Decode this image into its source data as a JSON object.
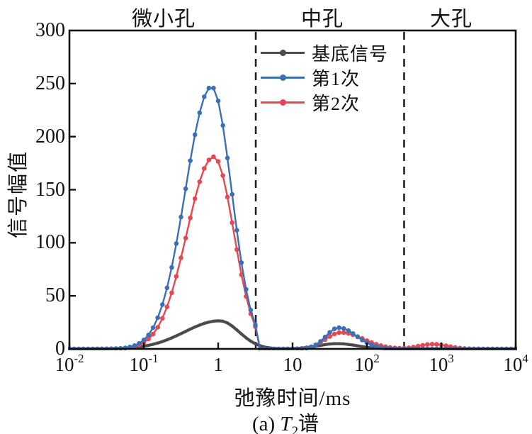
{
  "caption": {
    "prefix": "(a) ",
    "symbol": "T",
    "sub": "2",
    "suffix": "谱"
  },
  "chart_data": {
    "type": "line",
    "title": "",
    "xlabel": "弛豫时间/ms",
    "ylabel": "信号幅值",
    "x_scale": "log10",
    "x_log_range": [
      -2,
      4
    ],
    "ylim": [
      0,
      300
    ],
    "grid": false,
    "legend_position": "inside-top-center",
    "samples_per_decade": 16,
    "x_ticks": [
      {
        "log": -2,
        "base": "10",
        "exp": "-2"
      },
      {
        "log": -1,
        "base": "10",
        "exp": "-1"
      },
      {
        "log": 0,
        "base": "1",
        "exp": ""
      },
      {
        "log": 1,
        "base": "10",
        "exp": ""
      },
      {
        "log": 2,
        "base": "10",
        "exp": "2"
      },
      {
        "log": 3,
        "base": "10",
        "exp": "3"
      },
      {
        "log": 4,
        "base": "10",
        "exp": "4"
      }
    ],
    "y_ticks": [
      {
        "value": 0,
        "label": "0"
      },
      {
        "value": 50,
        "label": "50"
      },
      {
        "value": 100,
        "label": "100"
      },
      {
        "value": 150,
        "label": "150"
      },
      {
        "value": 200,
        "label": "200"
      },
      {
        "value": 250,
        "label": "250"
      },
      {
        "value": 300,
        "label": "300"
      }
    ],
    "regions": [
      {
        "label": "微小孔",
        "range_ms": [
          0.01,
          3.2
        ]
      },
      {
        "label": "中孔",
        "range_ms": [
          3.2,
          316
        ]
      },
      {
        "label": "大孔",
        "range_ms": [
          316,
          10000
        ]
      }
    ],
    "boundaries": {
      "values_ms": [
        3.2,
        316
      ],
      "color": "#222222",
      "dash": "11 8",
      "width": 2.6
    },
    "axis_color": "#111111",
    "series": [
      {
        "id": "base",
        "label": "基底信号",
        "color": "#4b4b4b",
        "line_width": 4.2,
        "marker_radius": 2.2,
        "peaks": [
          {
            "amp": 26.5,
            "center_log10": 0.02,
            "sigma_left": 0.47,
            "sigma_right": 0.26
          },
          {
            "amp": 5.0,
            "center_log10": 1.6,
            "sigma_left": 0.25,
            "sigma_right": 0.26
          }
        ],
        "peak_summary": [
          {
            "t2_ms": 1.05,
            "amplitude": 26.5
          },
          {
            "t2_ms": 40,
            "amplitude": 5
          }
        ]
      },
      {
        "id": "run2",
        "label": "第2次",
        "color": "#e84750",
        "line_width": 2.4,
        "marker_radius": 3.3,
        "peaks": [
          {
            "amp": 181,
            "center_log10": -0.06,
            "sigma_left": 0.36,
            "sigma_right": 0.27,
            "cutoff_ms": 3.6
          },
          {
            "amp": 15.5,
            "center_log10": 1.65,
            "sigma_left": 0.2,
            "sigma_right": 0.3
          },
          {
            "amp": 4.5,
            "center_log10": 2.88,
            "sigma_left": 0.18,
            "sigma_right": 0.2
          }
        ],
        "peak_summary": [
          {
            "t2_ms": 0.87,
            "amplitude": 181
          },
          {
            "t2_ms": 45,
            "amplitude": 15.5
          },
          {
            "t2_ms": 760,
            "amplitude": 4.5
          }
        ]
      },
      {
        "id": "run1",
        "label": "第1次",
        "color": "#3b70b5",
        "line_width": 2.4,
        "marker_radius": 3.3,
        "peaks": [
          {
            "amp": 247,
            "center_log10": -0.09,
            "sigma_left": 0.35,
            "sigma_right": 0.27,
            "cutoff_ms": 3.5
          },
          {
            "amp": 20,
            "center_log10": 1.62,
            "sigma_left": 0.17,
            "sigma_right": 0.24
          }
        ],
        "peak_summary": [
          {
            "t2_ms": 0.81,
            "amplitude": 247
          },
          {
            "t2_ms": 42,
            "amplitude": 20
          }
        ]
      }
    ],
    "legend_order": [
      "base",
      "run1",
      "run2"
    ]
  }
}
